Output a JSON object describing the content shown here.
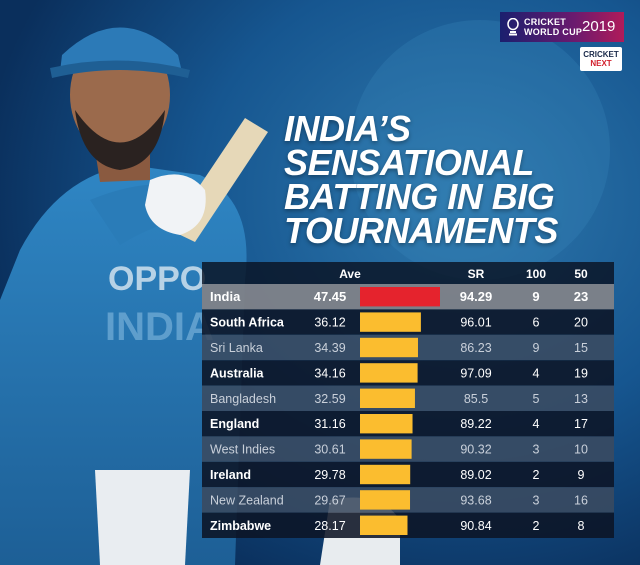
{
  "brand": {
    "line1": "CRICKET",
    "line2": "WORLD CUP",
    "year": "2019",
    "logo2_line1": "CRICKET",
    "logo2_line2": "NEXT"
  },
  "title_lines": [
    "INDIA’S",
    "SENSATIONAL",
    "BATTING IN BIG",
    "TOURNAMENTS"
  ],
  "colors": {
    "highlight_bar": "#e5232d",
    "bar": "#fbbd2f",
    "highlight_row": "#7f8288",
    "row_dark": "#0d1526",
    "row_light": "#3a4a60"
  },
  "chart_data": {
    "type": "table",
    "columns": [
      "Ave",
      "SR",
      "100",
      "50"
    ],
    "highlight": "India",
    "rows": [
      {
        "team": "India",
        "ave": 47.45,
        "ave_label": "47.45",
        "sr": "94.29",
        "hundreds": "9",
        "fifties": "23"
      },
      {
        "team": "South Africa",
        "ave": 36.12,
        "ave_label": "36.12",
        "sr": "96.01",
        "hundreds": "6",
        "fifties": "20"
      },
      {
        "team": "Sri Lanka",
        "ave": 34.39,
        "ave_label": "34.39",
        "sr": "86.23",
        "hundreds": "9",
        "fifties": "15"
      },
      {
        "team": "Australia",
        "ave": 34.16,
        "ave_label": "34.16",
        "sr": "97.09",
        "hundreds": "4",
        "fifties": "19"
      },
      {
        "team": "Bangladesh",
        "ave": 32.59,
        "ave_label": "32.59",
        "sr": "85.5",
        "hundreds": "5",
        "fifties": "13"
      },
      {
        "team": "England",
        "ave": 31.16,
        "ave_label": "31.16",
        "sr": "89.22",
        "hundreds": "4",
        "fifties": "17"
      },
      {
        "team": "West Indies",
        "ave": 30.61,
        "ave_label": "30.61",
        "sr": "90.32",
        "hundreds": "3",
        "fifties": "10"
      },
      {
        "team": "Ireland",
        "ave": 29.78,
        "ave_label": "29.78",
        "sr": "89.02",
        "hundreds": "2",
        "fifties": "9"
      },
      {
        "team": "New Zealand",
        "ave": 29.67,
        "ave_label": "29.67",
        "sr": "93.68",
        "hundreds": "3",
        "fifties": "16"
      },
      {
        "team": "Zimbabwe",
        "ave": 28.17,
        "ave_label": "28.17",
        "sr": "90.84",
        "hundreds": "2",
        "fifties": "8"
      }
    ]
  }
}
